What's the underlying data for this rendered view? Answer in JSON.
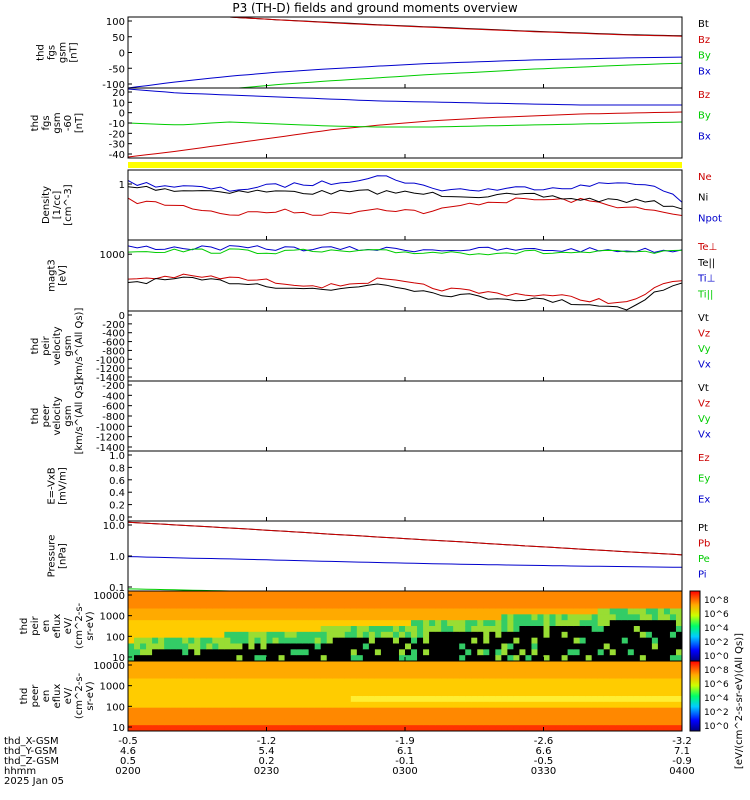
{
  "title": "P3 (TH-D) fields and ground moments overview",
  "chart_data": {
    "type": "line",
    "x": {
      "tick_labels": [
        "0200",
        "0230",
        "0300",
        "0330",
        "0400"
      ]
    },
    "status_bar_color": "#ffff00",
    "panels": [
      {
        "id": "fgs-gsm",
        "type": "line",
        "ylabel": [
          "thd",
          "fgs",
          "gsm",
          "[nT]"
        ],
        "yticks": [
          "100",
          "50",
          "0",
          "-50",
          "-100"
        ],
        "ylim": [
          -100,
          100
        ],
        "series": [
          {
            "name": "Bt",
            "color": "#000000",
            "values": [
              120,
              110,
              100,
              92,
              85,
              78,
              72,
              66,
              60,
              55,
              50,
              47
            ]
          },
          {
            "name": "Bz",
            "color": "#cc0000",
            "values": [
              120,
              110,
              100,
              92,
              84,
              77,
              71,
              65,
              59,
              54,
              49,
              46
            ]
          },
          {
            "name": "By",
            "color": "#00cc00",
            "values": [
              -135,
              -118,
              -103,
              -90,
              -80,
              -71,
              -62,
              -55,
              -47,
              -41,
              -35,
              -30
            ]
          },
          {
            "name": "Bx",
            "color": "#0000cc",
            "values": [
              -100,
              -82,
              -67,
              -55,
              -46,
              -38,
              -31,
              -26,
              -21,
              -18,
              -15,
              -13
            ]
          }
        ]
      },
      {
        "id": "fgs-dsl",
        "type": "line",
        "ylabel": [
          "thd",
          "fgs",
          "gsm",
          "-60",
          "[nT]"
        ],
        "yticks": [
          "20",
          "10",
          "0",
          "-10",
          "-20",
          "-30",
          "-40"
        ],
        "ylim": [
          -45,
          25
        ],
        "series": [
          {
            "name": "Bz",
            "color": "#cc0000",
            "values": [
              -44,
              -38,
              -31,
              -24,
              -17,
              -12,
              -8,
              -5,
              -3,
              -1,
              0,
              1
            ]
          },
          {
            "name": "By",
            "color": "#00cc00",
            "values": [
              -10,
              -12,
              -9,
              -11,
              -13,
              -14,
              -14,
              -13,
              -12,
              -11,
              -10,
              -9
            ]
          },
          {
            "name": "Bx",
            "color": "#0000cc",
            "values": [
              24,
              20,
              18,
              16,
              14,
              12,
              11,
              10,
              9,
              8,
              8,
              8
            ]
          }
        ]
      },
      {
        "id": "density",
        "type": "line",
        "yscale": "log",
        "ylabel": [
          "Density",
          "[1/cc]",
          "[cm^-3]"
        ],
        "yticks": [
          "1"
        ],
        "ylim": [
          0.05,
          2.2
        ],
        "series": [
          {
            "name": "Ne",
            "color": "#cc0000",
            "values": [
              0.42,
              0.32,
              0.2,
              0.24,
              0.2,
              0.28,
              0.22,
              0.38,
              0.45,
              0.42,
              0.28,
              0.18
            ]
          },
          {
            "name": "Ni",
            "color": "#000000",
            "values": [
              0.9,
              0.75,
              0.7,
              0.68,
              0.65,
              0.68,
              0.6,
              0.55,
              0.55,
              0.45,
              0.42,
              0.3
            ]
          },
          {
            "name": "Npot",
            "color": "#0000cc",
            "values": [
              1.1,
              0.9,
              0.75,
              0.95,
              1.1,
              1.6,
              0.8,
              0.75,
              0.85,
              0.9,
              1.2,
              0.4
            ]
          }
        ]
      },
      {
        "id": "temp",
        "type": "line",
        "yscale": "log",
        "ylabel": [
          "magt3",
          "[eV]"
        ],
        "yticks": [
          "1000"
        ],
        "ylim": [
          150,
          8000
        ],
        "series": [
          {
            "name": "Te⊥",
            "color": "#cc0000",
            "values": [
              900,
              1050,
              950,
              750,
              600,
              850,
              550,
              420,
              380,
              300,
              220,
              850
            ]
          },
          {
            "name": "Te||",
            "color": "#000000",
            "values": [
              750,
              880,
              780,
              600,
              470,
              720,
              420,
              330,
              290,
              230,
              170,
              700
            ]
          },
          {
            "name": "Ti⊥",
            "color": "#0000cc",
            "values": [
              5300,
              5200,
              5100,
              5000,
              4900,
              4800,
              4700,
              4700,
              4600,
              4600,
              4500,
              4500
            ]
          },
          {
            "name": "Ti||",
            "color": "#00cc00",
            "values": [
              4500,
              4400,
              4300,
              4200,
              4150,
              4100,
              4050,
              4000,
              4000,
              3950,
              3950,
              3900
            ]
          }
        ]
      },
      {
        "id": "peir-vel",
        "type": "line",
        "ylabel": [
          "thd",
          "peir",
          "velocity",
          "gsm",
          "[km/s^(All Qs)]"
        ],
        "yticks": [
          "0",
          "-200",
          "-400",
          "-600",
          "-800",
          "-1000",
          "-1200",
          "-1400"
        ],
        "ylim": [
          -1400,
          0
        ],
        "legend": [
          "Vt",
          "Vz",
          "Vy",
          "Vx"
        ],
        "series": []
      },
      {
        "id": "peer-vel",
        "type": "line",
        "ylabel": [
          "thd",
          "peer",
          "velocity",
          "gsm",
          "[km/s^(All Qs)]"
        ],
        "yticks": [
          "-200",
          "-400",
          "-600",
          "-800",
          "-1000",
          "-1200",
          "-1400"
        ],
        "ylim": [
          -1400,
          0
        ],
        "legend": [
          "Vt",
          "Vz",
          "Vy",
          "Vx"
        ],
        "series": []
      },
      {
        "id": "efield",
        "type": "line",
        "ylabel": [
          "E=-VxB",
          "[mV/m]"
        ],
        "yticks": [
          "1.0",
          "0.8",
          "0.6",
          "0.4",
          "0.2",
          "0.0"
        ],
        "ylim": [
          0,
          1
        ],
        "legend": [
          "Ez",
          "Ey",
          "Ex"
        ],
        "series": []
      },
      {
        "id": "pressure",
        "type": "line",
        "yscale": "log",
        "ylabel": [
          "Pressure",
          "[nPa]"
        ],
        "yticks": [
          "10.0",
          "1.0",
          "0.1"
        ],
        "ylim": [
          0.05,
          20
        ],
        "series": [
          {
            "name": "Pt",
            "color": "#000000",
            "values": [
              18,
              14,
              11,
              8.5,
              6.5,
              5,
              3.9,
              3,
              2.3,
              1.8,
              1.4,
              1.1
            ]
          },
          {
            "name": "Pb",
            "color": "#cc0000",
            "values": [
              18,
              14,
              11,
              8.5,
              6.5,
              5,
              3.9,
              3,
              2.3,
              1.8,
              1.4,
              1.1
            ]
          },
          {
            "name": "Pe",
            "color": "#00cc00",
            "values": [
              0.06,
              0.055,
              0.05,
              0.047,
              0.045,
              0.043,
              0.041,
              0.04,
              0.04,
              0.039,
              0.038,
              0.038
            ]
          },
          {
            "name": "Pi",
            "color": "#0000cc",
            "values": [
              0.95,
              0.85,
              0.78,
              0.7,
              0.63,
              0.57,
              0.52,
              0.48,
              0.45,
              0.42,
              0.4,
              0.38
            ]
          }
        ]
      },
      {
        "id": "peir-spec",
        "type": "heatmap",
        "ylabel": [
          "thd",
          "peir",
          "en",
          "eflux",
          "eV/",
          "(cm^2-s-",
          "sr-eV)"
        ],
        "yticks": [
          "10000",
          "1000",
          "100",
          "10"
        ]
      },
      {
        "id": "peer-spec",
        "type": "heatmap",
        "ylabel": [
          "thd",
          "peer",
          "en",
          "eflux",
          "eV/",
          "(cm^2-s-",
          "sr-eV)"
        ],
        "yticks": [
          "10000",
          "1000",
          "100",
          "10"
        ]
      }
    ],
    "colorbar": {
      "label": "[eV/(cm^2-s-sr-eV)(All Qs)]",
      "ticks_top": [
        "10^8",
        "10^6",
        "10^4",
        "10^2",
        "10^0"
      ],
      "ticks_bottom": [
        "10^8",
        "10^6",
        "10^4",
        "10^2",
        "10^0"
      ]
    }
  },
  "footer": {
    "rows": [
      {
        "label": "thd_X-GSM",
        "values": [
          "-0.5",
          "-1.2",
          "-1.9",
          "-2.6",
          "-3.2"
        ]
      },
      {
        "label": "thd_Y-GSM",
        "values": [
          "4.6",
          "5.4",
          "6.1",
          "6.6",
          "7.1"
        ]
      },
      {
        "label": "thd_Z-GSM",
        "values": [
          "0.5",
          "0.2",
          "-0.1",
          "-0.5",
          "-0.9"
        ]
      },
      {
        "label": "hhmm",
        "values": [
          "0200",
          "0230",
          "0300",
          "0330",
          "0400"
        ]
      }
    ],
    "date": "2025 Jan 05"
  }
}
